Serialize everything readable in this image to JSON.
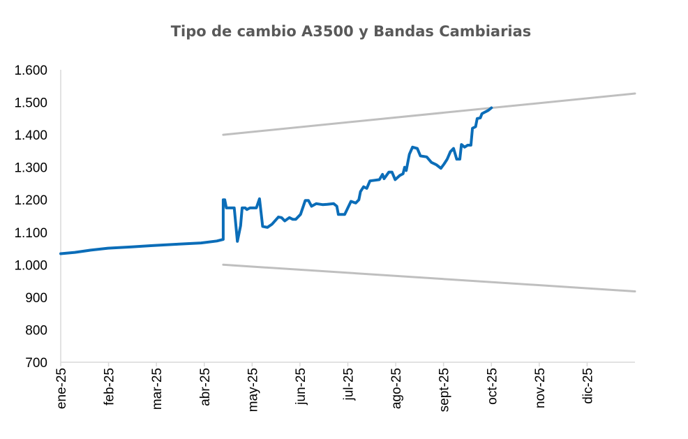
{
  "chart_data": {
    "type": "line",
    "title": "Tipo de cambio A3500 y Bandas Cambiarias",
    "xlabel": "",
    "ylabel": "",
    "x_ticks": [
      "ene-25",
      "feb-25",
      "mar-25",
      "abr-25",
      "may-25",
      "jun-25",
      "jul-25",
      "ago-25",
      "sept-25",
      "oct-25",
      "nov-25",
      "dic-25"
    ],
    "y_ticks": [
      "700",
      "800",
      "900",
      "1.000",
      "1.100",
      "1.200",
      "1.300",
      "1.400",
      "1.500",
      "1.600"
    ],
    "ylim": [
      700,
      1600
    ],
    "xlim": [
      "2025-01-01",
      "2025-12-31"
    ],
    "grid": false,
    "legend": "none",
    "series": [
      {
        "color": "#0B6DB8",
        "points": [
          [
            "2025-01-01",
            1034
          ],
          [
            "2025-01-10",
            1038
          ],
          [
            "2025-01-20",
            1045
          ],
          [
            "2025-01-31",
            1051
          ],
          [
            "2025-02-15",
            1055
          ],
          [
            "2025-02-28",
            1059
          ],
          [
            "2025-03-15",
            1063
          ],
          [
            "2025-03-31",
            1067
          ],
          [
            "2025-04-10",
            1073
          ],
          [
            "2025-04-14",
            1078
          ],
          [
            "2025-04-14",
            1200
          ],
          [
            "2025-04-15",
            1200
          ],
          [
            "2025-04-16",
            1175
          ],
          [
            "2025-04-21",
            1175
          ],
          [
            "2025-04-23",
            1072
          ],
          [
            "2025-04-25",
            1120
          ],
          [
            "2025-04-26",
            1175
          ],
          [
            "2025-04-28",
            1175
          ],
          [
            "2025-04-29",
            1170
          ],
          [
            "2025-05-01",
            1175
          ],
          [
            "2025-05-05",
            1175
          ],
          [
            "2025-05-07",
            1203
          ],
          [
            "2025-05-09",
            1118
          ],
          [
            "2025-05-12",
            1115
          ],
          [
            "2025-05-15",
            1125
          ],
          [
            "2025-05-19",
            1147
          ],
          [
            "2025-05-21",
            1145
          ],
          [
            "2025-05-23",
            1135
          ],
          [
            "2025-05-26",
            1145
          ],
          [
            "2025-05-28",
            1140
          ],
          [
            "2025-05-30",
            1140
          ],
          [
            "2025-06-02",
            1155
          ],
          [
            "2025-06-05",
            1198
          ],
          [
            "2025-06-07",
            1198
          ],
          [
            "2025-06-09",
            1180
          ],
          [
            "2025-06-12",
            1188
          ],
          [
            "2025-06-16",
            1185
          ],
          [
            "2025-06-19",
            1186
          ],
          [
            "2025-06-23",
            1188
          ],
          [
            "2025-06-25",
            1180
          ],
          [
            "2025-06-26",
            1155
          ],
          [
            "2025-06-30",
            1155
          ],
          [
            "2025-07-02",
            1175
          ],
          [
            "2025-07-04",
            1195
          ],
          [
            "2025-07-07",
            1190
          ],
          [
            "2025-07-09",
            1200
          ],
          [
            "2025-07-10",
            1225
          ],
          [
            "2025-07-12",
            1240
          ],
          [
            "2025-07-14",
            1235
          ],
          [
            "2025-07-16",
            1258
          ],
          [
            "2025-07-19",
            1260
          ],
          [
            "2025-07-22",
            1262
          ],
          [
            "2025-07-24",
            1278
          ],
          [
            "2025-07-25",
            1265
          ],
          [
            "2025-07-28",
            1285
          ],
          [
            "2025-07-30",
            1285
          ],
          [
            "2025-08-01",
            1262
          ],
          [
            "2025-08-04",
            1275
          ],
          [
            "2025-08-06",
            1280
          ],
          [
            "2025-08-07",
            1300
          ],
          [
            "2025-08-08",
            1290
          ],
          [
            "2025-08-10",
            1340
          ],
          [
            "2025-08-12",
            1362
          ],
          [
            "2025-08-15",
            1358
          ],
          [
            "2025-08-17",
            1335
          ],
          [
            "2025-08-21",
            1332
          ],
          [
            "2025-08-24",
            1315
          ],
          [
            "2025-08-27",
            1308
          ],
          [
            "2025-08-30",
            1297
          ],
          [
            "2025-09-01",
            1310
          ],
          [
            "2025-09-03",
            1325
          ],
          [
            "2025-09-05",
            1348
          ],
          [
            "2025-09-07",
            1358
          ],
          [
            "2025-09-09",
            1325
          ],
          [
            "2025-09-11",
            1325
          ],
          [
            "2025-09-12",
            1370
          ],
          [
            "2025-09-14",
            1362
          ],
          [
            "2025-09-16",
            1368
          ],
          [
            "2025-09-18",
            1368
          ],
          [
            "2025-09-19",
            1420
          ],
          [
            "2025-09-21",
            1425
          ],
          [
            "2025-09-22",
            1450
          ],
          [
            "2025-09-24",
            1452
          ],
          [
            "2025-09-25",
            1465
          ],
          [
            "2025-09-27",
            1470
          ],
          [
            "2025-09-29",
            1475
          ],
          [
            "2025-10-01",
            1483
          ]
        ]
      },
      {
        "color": "#BFBFBF",
        "points": [
          [
            "2025-04-14",
            1400
          ],
          [
            "2025-12-31",
            1527
          ]
        ]
      },
      {
        "color": "#BFBFBF",
        "points": [
          [
            "2025-04-14",
            1000
          ],
          [
            "2025-12-31",
            918
          ]
        ]
      }
    ]
  }
}
